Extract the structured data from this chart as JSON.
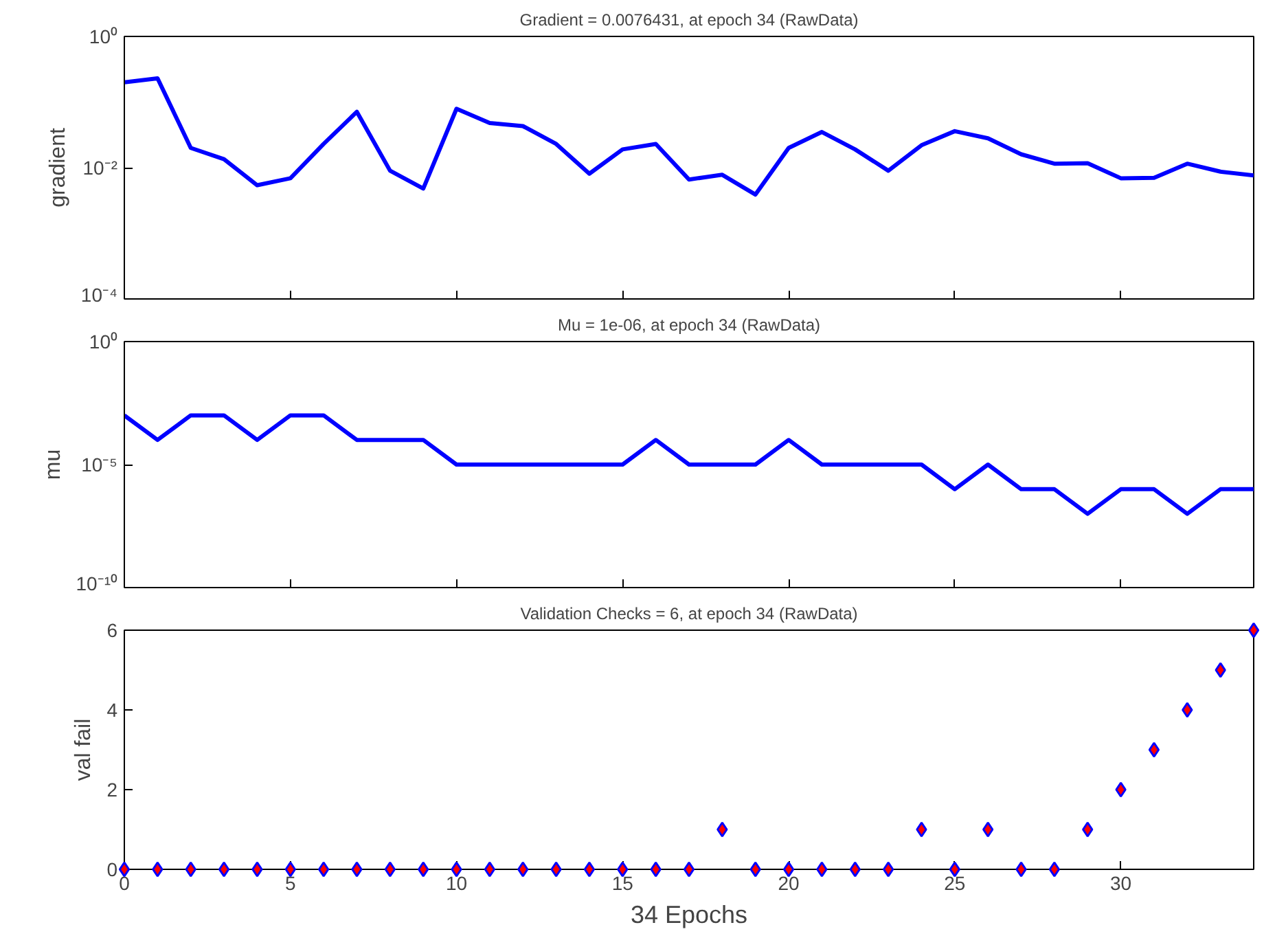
{
  "chart_data": [
    {
      "type": "line",
      "title": "Gradient = 0.0076431, at epoch 34 (RawData)",
      "ylabel": "gradient",
      "log": "y",
      "grid": false,
      "tick_labels": "y",
      "marker": "none",
      "x": [
        0,
        1,
        2,
        3,
        4,
        5,
        6,
        7,
        8,
        9,
        10,
        11,
        12,
        13,
        14,
        15,
        16,
        17,
        18,
        19,
        20,
        21,
        22,
        23,
        24,
        25,
        26,
        27,
        28,
        29,
        30,
        31,
        32,
        33,
        34
      ],
      "series": [
        {
          "color": "#0000ff",
          "values": [
            0.2,
            0.23,
            0.02,
            0.0135,
            0.0054,
            0.0069,
            0.023,
            0.071,
            0.009,
            0.0048,
            0.079,
            0.048,
            0.043,
            0.023,
            0.0081,
            0.019,
            0.023,
            0.0066,
            0.0078,
            0.0039,
            0.02,
            0.035,
            0.019,
            0.009,
            0.022,
            0.036,
            0.028,
            0.016,
            0.0115,
            0.0117,
            0.0069,
            0.007,
            0.0115,
            0.0087,
            0.0076431
          ]
        }
      ],
      "xlim": [
        0,
        34
      ],
      "xticks": [
        0,
        5,
        10,
        15,
        20,
        25,
        30
      ],
      "ylim": [
        0.0001,
        1
      ],
      "yticks": [
        {
          "value": 1,
          "label": "10⁰"
        },
        {
          "value": 0.01,
          "label": "10⁻²"
        },
        {
          "value": 0.0001,
          "label": "10⁻⁴"
        }
      ]
    },
    {
      "type": "line",
      "title": "Mu = 1e-06, at epoch 34 (RawData)",
      "ylabel": "mu",
      "log": "y",
      "grid": false,
      "tick_labels": "y",
      "marker": "none",
      "x": [
        0,
        1,
        2,
        3,
        4,
        5,
        6,
        7,
        8,
        9,
        10,
        11,
        12,
        13,
        14,
        15,
        16,
        17,
        18,
        19,
        20,
        21,
        22,
        23,
        24,
        25,
        26,
        27,
        28,
        29,
        30,
        31,
        32,
        33,
        34
      ],
      "series": [
        {
          "color": "#0000ff",
          "values": [
            0.001,
            0.0001,
            0.001,
            0.001,
            0.0001,
            0.001,
            0.001,
            0.0001,
            0.0001,
            0.0001,
            1e-05,
            1e-05,
            1e-05,
            1e-05,
            1e-05,
            1e-05,
            0.0001,
            1e-05,
            1e-05,
            1e-05,
            0.0001,
            1e-05,
            1e-05,
            1e-05,
            1e-05,
            1e-06,
            1e-05,
            1e-06,
            1e-06,
            1e-07,
            1e-06,
            1e-06,
            1e-07,
            1e-06,
            1e-06
          ]
        }
      ],
      "xlim": [
        0,
        34
      ],
      "xticks": [
        0,
        5,
        10,
        15,
        20,
        25,
        30
      ],
      "ylim": [
        1e-10,
        1
      ],
      "yticks": [
        {
          "value": 1,
          "label": "10⁰"
        },
        {
          "value": 1e-05,
          "label": "10⁻⁵"
        },
        {
          "value": 1e-10,
          "label": "10⁻¹⁰"
        }
      ]
    },
    {
      "type": "scatter",
      "title": "Validation Checks = 6, at epoch 34 (RawData)",
      "xlabel": "34 Epochs",
      "ylabel": "val fail",
      "grid": false,
      "marker": "diamond",
      "x": [
        0,
        1,
        2,
        3,
        4,
        5,
        6,
        7,
        8,
        9,
        10,
        11,
        12,
        13,
        14,
        15,
        16,
        17,
        18,
        19,
        20,
        21,
        22,
        23,
        24,
        25,
        26,
        27,
        28,
        29,
        30,
        31,
        32,
        33,
        34
      ],
      "series": [
        {
          "color": "#ff0000",
          "values": [
            0,
            0,
            0,
            0,
            0,
            0,
            0,
            0,
            0,
            0,
            0,
            0,
            0,
            0,
            0,
            0,
            0,
            0,
            1,
            0,
            0,
            0,
            0,
            0,
            1,
            0,
            1,
            0,
            0,
            1,
            2,
            3,
            4,
            5,
            6
          ]
        }
      ],
      "xlim": [
        0,
        34
      ],
      "xticks": [
        0,
        5,
        10,
        15,
        20,
        25,
        30
      ],
      "ylim": [
        0,
        6
      ],
      "yticks": [
        0,
        2,
        4,
        6
      ]
    }
  ]
}
